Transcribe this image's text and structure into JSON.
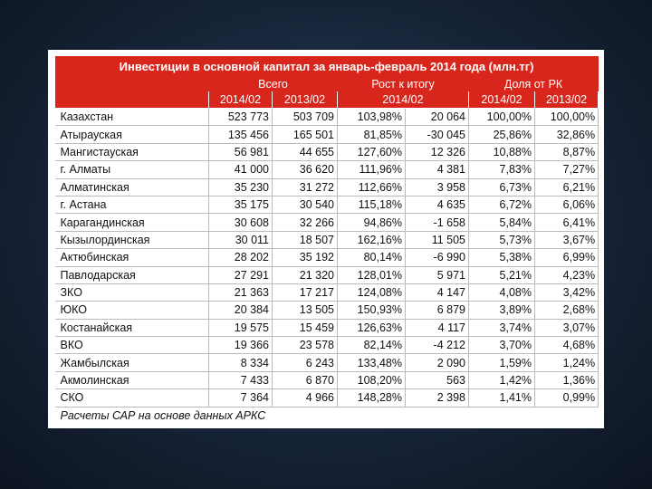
{
  "table": {
    "title": "Инвестиции в основной капитал за январь-февраль 2014 года (млн.тг)",
    "groups": [
      "Всего",
      "Рост к итогу",
      "Доля от РК"
    ],
    "periods": [
      "2014/02",
      "2013/02",
      "2014/02",
      "2014/02",
      "2013/02"
    ],
    "rows": [
      [
        "Казахстан",
        "523 773",
        "503 709",
        "103,98%",
        "20 064",
        "100,00%",
        "100,00%"
      ],
      [
        "Атырауская",
        "135 456",
        "165 501",
        "81,85%",
        "-30 045",
        "25,86%",
        "32,86%"
      ],
      [
        "Мангистауская",
        "56 981",
        "44 655",
        "127,60%",
        "12 326",
        "10,88%",
        "8,87%"
      ],
      [
        "г. Алматы",
        "41 000",
        "36 620",
        "111,96%",
        "4 381",
        "7,83%",
        "7,27%"
      ],
      [
        "Алматинская",
        "35 230",
        "31 272",
        "112,66%",
        "3 958",
        "6,73%",
        "6,21%"
      ],
      [
        "г. Астана",
        "35 175",
        "30 540",
        "115,18%",
        "4 635",
        "6,72%",
        "6,06%"
      ],
      [
        "Карагандинская",
        "30 608",
        "32 266",
        "94,86%",
        "-1 658",
        "5,84%",
        "6,41%"
      ],
      [
        "Кызылординская",
        "30 011",
        "18 507",
        "162,16%",
        "11 505",
        "5,73%",
        "3,67%"
      ],
      [
        "Актюбинская",
        "28 202",
        "35 192",
        "80,14%",
        "-6 990",
        "5,38%",
        "6,99%"
      ],
      [
        "Павлодарская",
        "27 291",
        "21 320",
        "128,01%",
        "5 971",
        "5,21%",
        "4,23%"
      ],
      [
        "ЗКО",
        "21 363",
        "17 217",
        "124,08%",
        "4 147",
        "4,08%",
        "3,42%"
      ],
      [
        "ЮКО",
        "20 384",
        "13 505",
        "150,93%",
        "6 879",
        "3,89%",
        "2,68%"
      ],
      [
        "Костанайская",
        "19 575",
        "15 459",
        "126,63%",
        "4 117",
        "3,74%",
        "3,07%"
      ],
      [
        "ВКО",
        "19 366",
        "23 578",
        "82,14%",
        "-4 212",
        "3,70%",
        "4,68%"
      ],
      [
        "Жамбылская",
        "8 334",
        "6 243",
        "133,48%",
        "2 090",
        "1,59%",
        "1,24%"
      ],
      [
        "Акмолинская",
        "7 433",
        "6 870",
        "108,20%",
        "563",
        "1,42%",
        "1,36%"
      ],
      [
        "СКО",
        "7 364",
        "4 966",
        "148,28%",
        "2 398",
        "1,41%",
        "0,99%"
      ]
    ],
    "footnote": "Расчеты САР на основе данных АРКС"
  }
}
